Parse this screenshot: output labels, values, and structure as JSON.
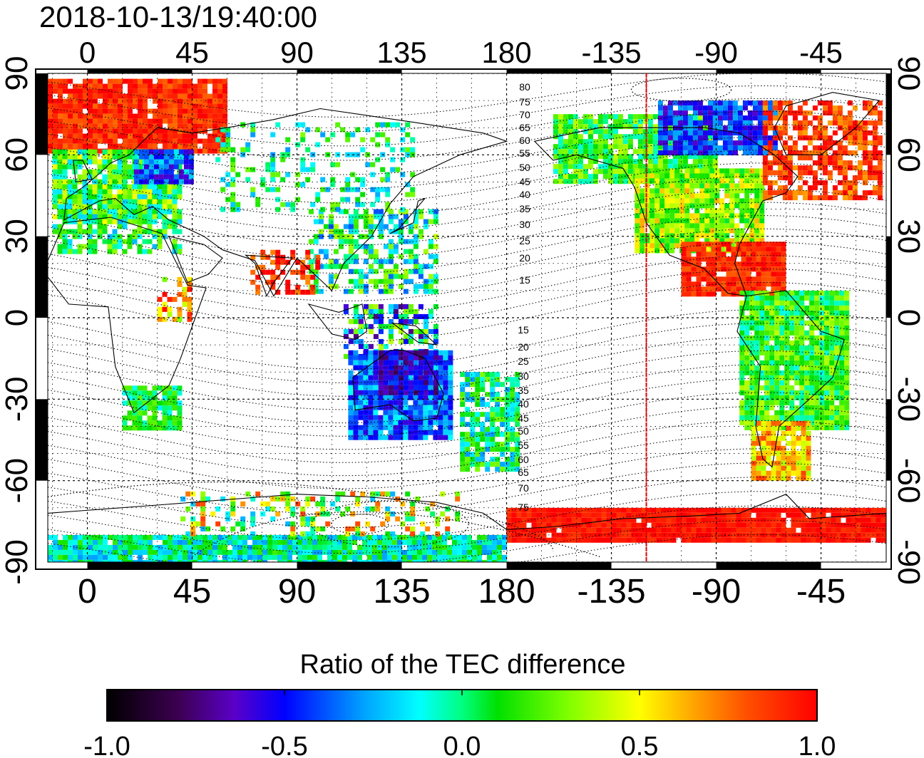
{
  "timestamp": "2018-10-13/19:40:00",
  "top_lon_labels": [
    "0",
    "45",
    "90",
    "135",
    "180",
    "-135",
    "-90",
    "-45"
  ],
  "bottom_lon_labels": [
    "0",
    "45",
    "90",
    "135",
    "180",
    "-135",
    "-90",
    "-45"
  ],
  "left_lat_labels": [
    "90",
    "60",
    "30",
    "0",
    "-30",
    "-60",
    "-90"
  ],
  "right_lat_labels": [
    "90",
    "60",
    "30",
    "0",
    "-30",
    "-60",
    "-90"
  ],
  "mlat_north_labels": [
    "80",
    "75",
    "70",
    "65",
    "60",
    "55",
    "50",
    "45",
    "40",
    "35",
    "30",
    "25",
    "20",
    "15"
  ],
  "mlat_south_labels": [
    "15",
    "20",
    "25",
    "30",
    "35",
    "40",
    "45",
    "50",
    "55",
    "60",
    "65",
    "70",
    "75"
  ],
  "marker_line": {
    "lon": -120,
    "color": "#e00000"
  },
  "colorbar": {
    "title": "Ratio of the TEC difference",
    "min": -1.0,
    "max": 1.0,
    "tick_labels": [
      "-1.0",
      "-0.5",
      "0.0",
      "0.5",
      "1.0"
    ],
    "stops": [
      "#000000",
      "#3c0050",
      "#5a00c8",
      "#0000ff",
      "#00a0ff",
      "#00ffff",
      "#00ff80",
      "#00e000",
      "#80ff00",
      "#ffff00",
      "#ffa000",
      "#ff5000",
      "#ff0000"
    ]
  },
  "colors": {
    "ocean": "#ffffff",
    "coast": "#000000",
    "frame": "#000000"
  }
}
